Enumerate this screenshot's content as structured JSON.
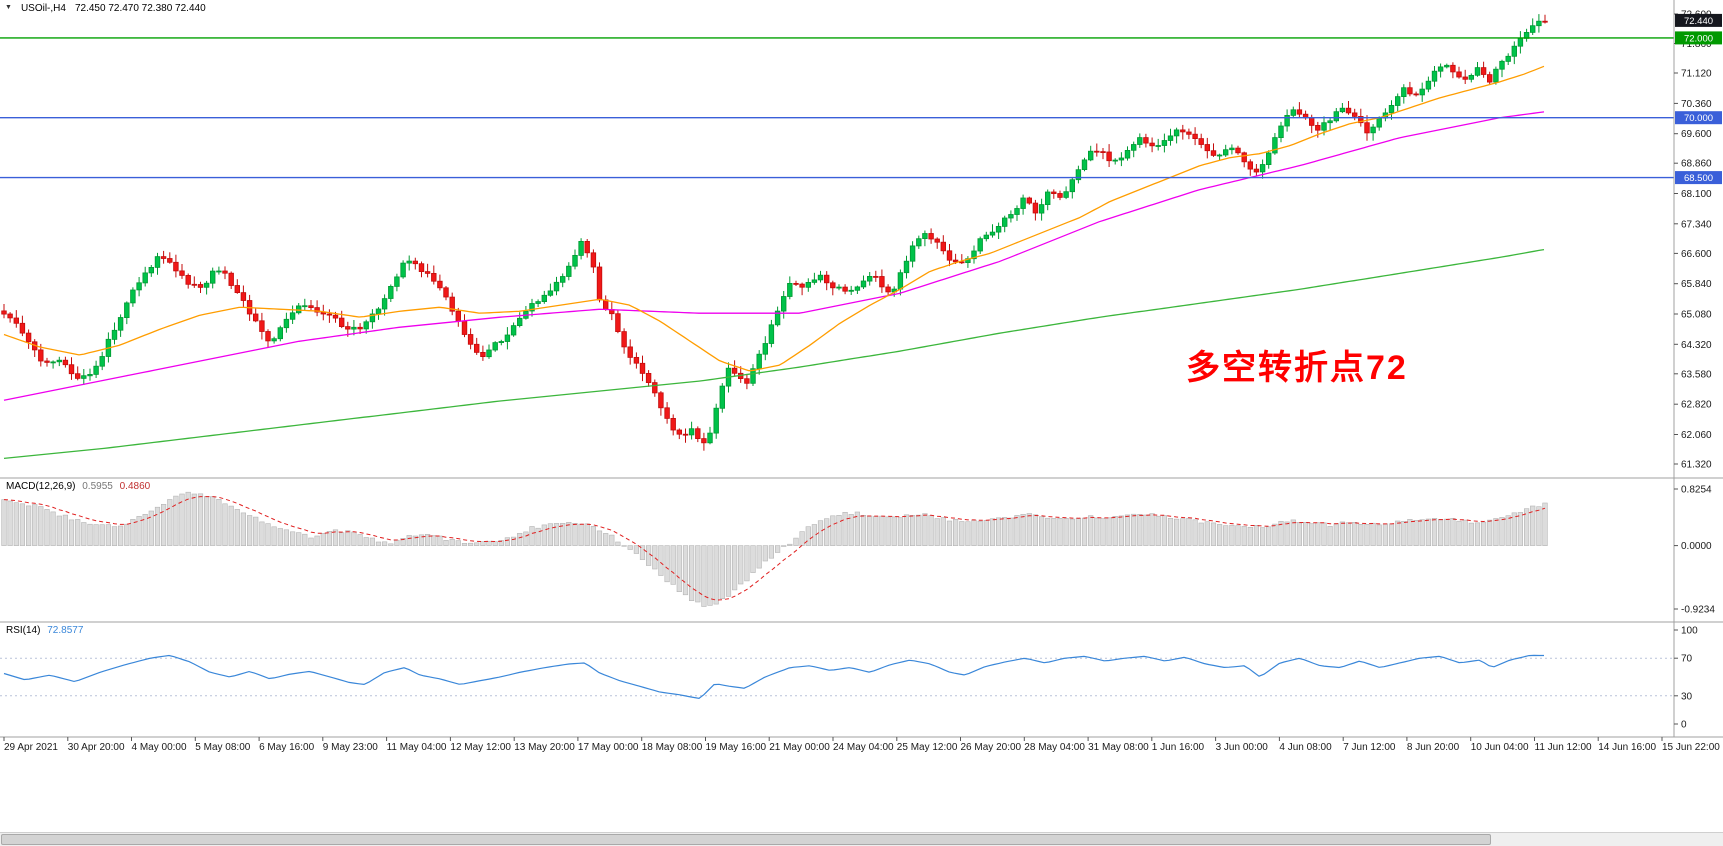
{
  "colors": {
    "up_fill": "#00c24a",
    "up_stroke": "#009a32",
    "down_fill": "#f01818",
    "down_stroke": "#c40c0c",
    "ma_fast": "#ff9d00",
    "ma_mid": "#ee00ee",
    "ma_slow": "#3cb63c",
    "hline_green": "#00a000",
    "hline_blue": "#3a5fd9",
    "macd_bar": "#dcdcdc",
    "macd_bar_edge": "#b4b4b4",
    "macd_signal": "#e02020",
    "rsi_line": "#3a87d9",
    "rsi_level": "#b9c2d9",
    "axis_text": "#1a1a1a",
    "separator": "#a0a0a0",
    "tag_current_bg": "#15171e",
    "tag_green_bg": "#009900",
    "tag_blue_bg": "#3a5fd9",
    "annotation": "#ff0000"
  },
  "header": {
    "collapse_icon": "▼",
    "symbol": "USOil-,H4",
    "quote": "72.450 72.470 72.380 72.440"
  },
  "annotation": {
    "text": "多空转折点72"
  },
  "chart_data": {
    "type": "candlestick",
    "title": "USOil H4 candlestick chart with 3 moving averages, MACD and RSI",
    "symbol": "USOil",
    "timeframe": "H4",
    "current_ohlc": {
      "open": 72.45,
      "high": 72.47,
      "low": 72.38,
      "close": 72.44
    },
    "ylim": [
      61.32,
      72.6
    ],
    "price_ticks": [
      72.6,
      71.86,
      71.12,
      70.36,
      69.6,
      68.86,
      68.1,
      67.34,
      66.6,
      65.84,
      65.08,
      64.32,
      63.58,
      62.82,
      62.06,
      61.32
    ],
    "price_tags": [
      {
        "label": "72.440",
        "price": 72.44,
        "style": "current"
      },
      {
        "label": "72.000",
        "price": 72.0,
        "style": "green"
      },
      {
        "label": "70.000",
        "price": 70.0,
        "style": "blue"
      },
      {
        "label": "68.500",
        "price": 68.5,
        "style": "blue"
      }
    ],
    "hlines": [
      {
        "price": 72.0,
        "style": "green"
      },
      {
        "price": 70.0,
        "style": "blue"
      },
      {
        "price": 68.5,
        "style": "blue"
      }
    ],
    "price_path": [
      [
        0,
        65.1
      ],
      [
        15,
        64.9
      ],
      [
        30,
        64.3
      ],
      [
        45,
        63.8
      ],
      [
        60,
        63.9
      ],
      [
        80,
        63.45
      ],
      [
        92,
        63.6
      ],
      [
        105,
        64.2
      ],
      [
        118,
        64.9
      ],
      [
        132,
        65.6
      ],
      [
        146,
        66.1
      ],
      [
        160,
        66.55
      ],
      [
        175,
        66.2
      ],
      [
        190,
        65.8
      ],
      [
        205,
        65.7
      ],
      [
        216,
        66.3
      ],
      [
        230,
        65.9
      ],
      [
        245,
        65.3
      ],
      [
        258,
        64.8
      ],
      [
        270,
        64.35
      ],
      [
        285,
        64.9
      ],
      [
        300,
        65.25
      ],
      [
        315,
        65.2
      ],
      [
        330,
        65.05
      ],
      [
        345,
        64.7
      ],
      [
        360,
        64.75
      ],
      [
        375,
        65.1
      ],
      [
        390,
        65.7
      ],
      [
        405,
        66.5
      ],
      [
        420,
        66.2
      ],
      [
        435,
        65.9
      ],
      [
        450,
        65.3
      ],
      [
        465,
        64.6
      ],
      [
        480,
        63.95
      ],
      [
        495,
        64.3
      ],
      [
        510,
        64.6
      ],
      [
        525,
        65.2
      ],
      [
        540,
        65.4
      ],
      [
        555,
        65.8
      ],
      [
        570,
        66.3
      ],
      [
        581,
        66.85
      ],
      [
        591,
        66.5
      ],
      [
        601,
        65.3
      ],
      [
        611,
        65.1
      ],
      [
        621,
        64.4
      ],
      [
        631,
        64.0
      ],
      [
        641,
        63.7
      ],
      [
        651,
        63.3
      ],
      [
        661,
        62.7
      ],
      [
        671,
        62.3
      ],
      [
        681,
        61.95
      ],
      [
        691,
        62.3
      ],
      [
        702,
        61.75
      ],
      [
        712,
        62.1
      ],
      [
        718,
        63.0
      ],
      [
        727,
        63.7
      ],
      [
        737,
        63.55
      ],
      [
        747,
        63.4
      ],
      [
        757,
        63.9
      ],
      [
        767,
        64.5
      ],
      [
        777,
        65.1
      ],
      [
        790,
        65.85
      ],
      [
        805,
        65.8
      ],
      [
        820,
        66.0
      ],
      [
        835,
        65.75
      ],
      [
        850,
        65.6
      ],
      [
        862,
        65.95
      ],
      [
        875,
        66.1
      ],
      [
        890,
        65.5
      ],
      [
        902,
        66.2
      ],
      [
        915,
        66.9
      ],
      [
        926,
        67.15
      ],
      [
        940,
        66.8
      ],
      [
        952,
        66.4
      ],
      [
        965,
        66.3
      ],
      [
        980,
        66.9
      ],
      [
        995,
        67.2
      ],
      [
        1010,
        67.6
      ],
      [
        1025,
        68.0
      ],
      [
        1036,
        67.6
      ],
      [
        1050,
        68.25
      ],
      [
        1061,
        67.95
      ],
      [
        1075,
        68.5
      ],
      [
        1090,
        69.1
      ],
      [
        1100,
        69.25
      ],
      [
        1111,
        68.9
      ],
      [
        1125,
        69.1
      ],
      [
        1140,
        69.45
      ],
      [
        1155,
        69.2
      ],
      [
        1170,
        69.6
      ],
      [
        1185,
        69.7
      ],
      [
        1200,
        69.35
      ],
      [
        1215,
        69.0
      ],
      [
        1230,
        69.3
      ],
      [
        1245,
        68.85
      ],
      [
        1258,
        68.55
      ],
      [
        1270,
        69.2
      ],
      [
        1283,
        69.9
      ],
      [
        1295,
        70.25
      ],
      [
        1306,
        69.95
      ],
      [
        1318,
        69.7
      ],
      [
        1330,
        69.95
      ],
      [
        1343,
        70.3
      ],
      [
        1355,
        70.0
      ],
      [
        1368,
        69.6
      ],
      [
        1380,
        70.05
      ],
      [
        1393,
        70.35
      ],
      [
        1405,
        70.75
      ],
      [
        1418,
        70.5
      ],
      [
        1430,
        71.0
      ],
      [
        1443,
        71.4
      ],
      [
        1455,
        71.15
      ],
      [
        1466,
        70.9
      ],
      [
        1478,
        71.3
      ],
      [
        1490,
        70.95
      ],
      [
        1503,
        71.4
      ],
      [
        1516,
        71.9
      ],
      [
        1529,
        72.25
      ],
      [
        1543,
        72.44
      ]
    ],
    "ma_fast": [
      [
        0,
        64.6
      ],
      [
        40,
        64.25
      ],
      [
        80,
        64.05
      ],
      [
        120,
        64.3
      ],
      [
        160,
        64.7
      ],
      [
        200,
        65.05
      ],
      [
        240,
        65.25
      ],
      [
        280,
        65.2
      ],
      [
        320,
        65.15
      ],
      [
        360,
        65.0
      ],
      [
        400,
        65.15
      ],
      [
        440,
        65.25
      ],
      [
        480,
        65.1
      ],
      [
        520,
        65.15
      ],
      [
        560,
        65.3
      ],
      [
        600,
        65.45
      ],
      [
        630,
        65.3
      ],
      [
        660,
        64.9
      ],
      [
        690,
        64.4
      ],
      [
        720,
        63.9
      ],
      [
        750,
        63.65
      ],
      [
        780,
        63.8
      ],
      [
        810,
        64.3
      ],
      [
        840,
        64.85
      ],
      [
        870,
        65.3
      ],
      [
        900,
        65.7
      ],
      [
        930,
        66.15
      ],
      [
        960,
        66.4
      ],
      [
        990,
        66.6
      ],
      [
        1020,
        66.9
      ],
      [
        1050,
        67.2
      ],
      [
        1080,
        67.5
      ],
      [
        1110,
        67.9
      ],
      [
        1140,
        68.2
      ],
      [
        1170,
        68.5
      ],
      [
        1200,
        68.8
      ],
      [
        1230,
        69.0
      ],
      [
        1260,
        69.1
      ],
      [
        1290,
        69.3
      ],
      [
        1320,
        69.6
      ],
      [
        1350,
        69.85
      ],
      [
        1380,
        70.0
      ],
      [
        1410,
        70.25
      ],
      [
        1440,
        70.5
      ],
      [
        1470,
        70.7
      ],
      [
        1500,
        70.9
      ],
      [
        1525,
        71.1
      ],
      [
        1545,
        71.3
      ]
    ],
    "ma_mid": [
      [
        0,
        62.9
      ],
      [
        100,
        63.4
      ],
      [
        200,
        63.9
      ],
      [
        300,
        64.4
      ],
      [
        400,
        64.75
      ],
      [
        500,
        65.0
      ],
      [
        600,
        65.2
      ],
      [
        700,
        65.1
      ],
      [
        800,
        65.1
      ],
      [
        900,
        65.6
      ],
      [
        1000,
        66.4
      ],
      [
        1100,
        67.4
      ],
      [
        1200,
        68.2
      ],
      [
        1300,
        68.8
      ],
      [
        1400,
        69.5
      ],
      [
        1500,
        70.0
      ],
      [
        1545,
        70.15
      ]
    ],
    "ma_slow": [
      [
        0,
        61.45
      ],
      [
        100,
        61.7
      ],
      [
        200,
        62.0
      ],
      [
        300,
        62.3
      ],
      [
        400,
        62.6
      ],
      [
        500,
        62.9
      ],
      [
        600,
        63.15
      ],
      [
        700,
        63.4
      ],
      [
        800,
        63.75
      ],
      [
        900,
        64.15
      ],
      [
        1000,
        64.6
      ],
      [
        1100,
        65.0
      ],
      [
        1200,
        65.35
      ],
      [
        1300,
        65.7
      ],
      [
        1400,
        66.1
      ],
      [
        1500,
        66.5
      ],
      [
        1545,
        66.7
      ]
    ],
    "macd": {
      "name": "MACD(12,26,9)",
      "main_value": "0.5955",
      "signal_value": "0.4860",
      "ticks": [
        {
          "label": "0.8254",
          "v": 0.8254
        },
        {
          "label": "0.0000",
          "v": 0
        },
        {
          "label": "-0.9234",
          "v": -0.9234
        }
      ],
      "path": [
        [
          0,
          0.68
        ],
        [
          30,
          0.6
        ],
        [
          60,
          0.45
        ],
        [
          90,
          0.3
        ],
        [
          120,
          0.28
        ],
        [
          150,
          0.5
        ],
        [
          180,
          0.75
        ],
        [
          200,
          0.78
        ],
        [
          220,
          0.65
        ],
        [
          250,
          0.45
        ],
        [
          280,
          0.25
        ],
        [
          310,
          0.12
        ],
        [
          330,
          0.2
        ],
        [
          350,
          0.22
        ],
        [
          370,
          0.1
        ],
        [
          390,
          0.02
        ],
        [
          410,
          0.15
        ],
        [
          430,
          0.18
        ],
        [
          450,
          0.08
        ],
        [
          470,
          0.02
        ],
        [
          490,
          0.05
        ],
        [
          510,
          0.1
        ],
        [
          530,
          0.25
        ],
        [
          550,
          0.3
        ],
        [
          570,
          0.35
        ],
        [
          590,
          0.3
        ],
        [
          610,
          0.15
        ],
        [
          630,
          -0.05
        ],
        [
          650,
          -0.3
        ],
        [
          670,
          -0.55
        ],
        [
          690,
          -0.78
        ],
        [
          705,
          -0.9
        ],
        [
          720,
          -0.82
        ],
        [
          735,
          -0.65
        ],
        [
          750,
          -0.45
        ],
        [
          765,
          -0.25
        ],
        [
          780,
          -0.08
        ],
        [
          795,
          0.1
        ],
        [
          810,
          0.3
        ],
        [
          830,
          0.42
        ],
        [
          850,
          0.48
        ],
        [
          870,
          0.44
        ],
        [
          890,
          0.4
        ],
        [
          910,
          0.46
        ],
        [
          930,
          0.44
        ],
        [
          950,
          0.38
        ],
        [
          970,
          0.34
        ],
        [
          990,
          0.38
        ],
        [
          1010,
          0.42
        ],
        [
          1030,
          0.46
        ],
        [
          1050,
          0.42
        ],
        [
          1070,
          0.38
        ],
        [
          1090,
          0.42
        ],
        [
          1110,
          0.4
        ],
        [
          1130,
          0.44
        ],
        [
          1150,
          0.46
        ],
        [
          1170,
          0.42
        ],
        [
          1190,
          0.38
        ],
        [
          1210,
          0.32
        ],
        [
          1230,
          0.28
        ],
        [
          1250,
          0.26
        ],
        [
          1270,
          0.3
        ],
        [
          1290,
          0.36
        ],
        [
          1310,
          0.32
        ],
        [
          1330,
          0.3
        ],
        [
          1350,
          0.34
        ],
        [
          1370,
          0.3
        ],
        [
          1390,
          0.32
        ],
        [
          1410,
          0.36
        ],
        [
          1430,
          0.4
        ],
        [
          1450,
          0.38
        ],
        [
          1470,
          0.34
        ],
        [
          1490,
          0.36
        ],
        [
          1510,
          0.44
        ],
        [
          1525,
          0.52
        ],
        [
          1543,
          0.6
        ]
      ]
    },
    "rsi": {
      "name": "RSI(14)",
      "value": "72.8577",
      "ticks": [
        {
          "label": "100",
          "v": 100
        },
        {
          "label": "70",
          "v": 70
        },
        {
          "label": "30",
          "v": 30
        },
        {
          "label": "0",
          "v": 0
        }
      ],
      "levels": [
        70,
        30
      ],
      "path": [
        [
          0,
          55
        ],
        [
          25,
          47
        ],
        [
          50,
          52
        ],
        [
          75,
          45
        ],
        [
          100,
          55
        ],
        [
          125,
          63
        ],
        [
          150,
          70
        ],
        [
          170,
          73
        ],
        [
          190,
          66
        ],
        [
          210,
          55
        ],
        [
          230,
          50
        ],
        [
          250,
          56
        ],
        [
          270,
          48
        ],
        [
          290,
          53
        ],
        [
          310,
          56
        ],
        [
          330,
          50
        ],
        [
          350,
          44
        ],
        [
          365,
          42
        ],
        [
          385,
          55
        ],
        [
          405,
          60
        ],
        [
          420,
          52
        ],
        [
          440,
          48
        ],
        [
          460,
          42
        ],
        [
          480,
          46
        ],
        [
          500,
          50
        ],
        [
          520,
          55
        ],
        [
          545,
          60
        ],
        [
          570,
          64
        ],
        [
          585,
          65
        ],
        [
          600,
          54
        ],
        [
          620,
          46
        ],
        [
          640,
          40
        ],
        [
          660,
          34
        ],
        [
          680,
          31
        ],
        [
          700,
          27
        ],
        [
          715,
          43
        ],
        [
          730,
          40
        ],
        [
          745,
          38
        ],
        [
          765,
          50
        ],
        [
          790,
          60
        ],
        [
          810,
          62
        ],
        [
          830,
          57
        ],
        [
          850,
          60
        ],
        [
          870,
          55
        ],
        [
          890,
          63
        ],
        [
          910,
          68
        ],
        [
          930,
          64
        ],
        [
          950,
          55
        ],
        [
          965,
          52
        ],
        [
          985,
          61
        ],
        [
          1005,
          66
        ],
        [
          1025,
          70
        ],
        [
          1045,
          65
        ],
        [
          1065,
          70
        ],
        [
          1085,
          72
        ],
        [
          1105,
          67
        ],
        [
          1125,
          70
        ],
        [
          1145,
          72
        ],
        [
          1165,
          67
        ],
        [
          1185,
          71
        ],
        [
          1205,
          64
        ],
        [
          1225,
          60
        ],
        [
          1245,
          62
        ],
        [
          1260,
          50
        ],
        [
          1280,
          65
        ],
        [
          1300,
          70
        ],
        [
          1320,
          62
        ],
        [
          1340,
          60
        ],
        [
          1360,
          67
        ],
        [
          1380,
          60
        ],
        [
          1400,
          65
        ],
        [
          1420,
          70
        ],
        [
          1440,
          72
        ],
        [
          1460,
          65
        ],
        [
          1480,
          68
        ],
        [
          1492,
          60
        ],
        [
          1510,
          68
        ],
        [
          1530,
          73
        ],
        [
          1543,
          72.86
        ]
      ]
    },
    "x_labels": [
      "29 Apr 2021",
      "30 Apr 20:00",
      "4 May 00:00",
      "5 May 08:00",
      "6 May 16:00",
      "9 May 23:00",
      "11 May 04:00",
      "12 May 12:00",
      "13 May 20:00",
      "17 May 00:00",
      "18 May 08:00",
      "19 May 16:00",
      "21 May 00:00",
      "24 May 04:00",
      "25 May 12:00",
      "26 May 20:00",
      "28 May 04:00",
      "31 May 08:00",
      "1 Jun 16:00",
      "3 Jun 00:00",
      "4 Jun 08:00",
      "7 Jun 12:00",
      "8 Jun 20:00",
      "10 Jun 04:00",
      "11 Jun 12:00",
      "14 Jun 16:00",
      "15 Jun 22:00"
    ]
  }
}
